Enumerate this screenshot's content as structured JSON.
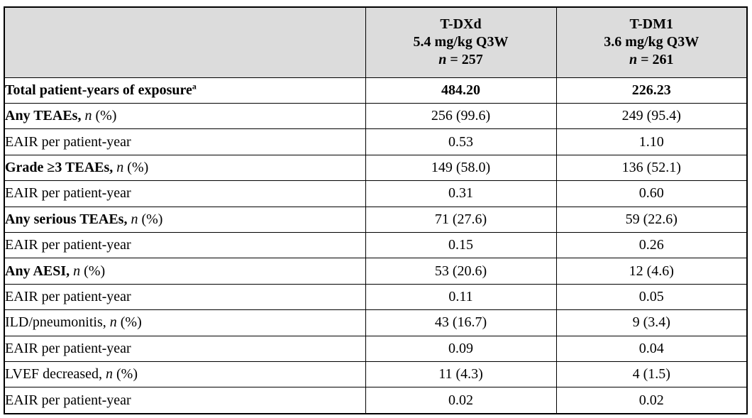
{
  "table": {
    "name": "teae-safety-summary-table",
    "header_bg": "#dcdcdc",
    "border_color": "#000000",
    "columns": [
      {
        "id": "row-label",
        "lines": []
      },
      {
        "id": "t-dxd",
        "lines": [
          [
            {
              "v": "T-DXd"
            }
          ],
          [
            {
              "v": "5.4 mg/kg Q3W"
            }
          ],
          [
            {
              "v": "n",
              "i": true
            },
            {
              "v": " = 257"
            }
          ]
        ]
      },
      {
        "id": "t-dm1",
        "lines": [
          [
            {
              "v": "T-DM1"
            }
          ],
          [
            {
              "v": "3.6 mg/kg Q3W"
            }
          ],
          [
            {
              "v": "n",
              "i": true
            },
            {
              "v": " = 261"
            }
          ]
        ]
      }
    ],
    "rows": [
      {
        "id": "total-patient-years",
        "indent": 0,
        "bold_values": true,
        "label_parts": [
          {
            "v": "Total patient-years of exposure",
            "b": true
          },
          {
            "v": "a",
            "b": true,
            "sup": true
          }
        ],
        "cells": [
          "484.20",
          "226.23"
        ]
      },
      {
        "id": "any-teaes",
        "indent": 0,
        "label_parts": [
          {
            "v": "Any TEAEs, ",
            "b": true
          },
          {
            "v": "n",
            "i": true
          },
          {
            "v": " (%)"
          }
        ],
        "cells": [
          "256 (99.6)",
          "249 (95.4)"
        ]
      },
      {
        "id": "any-teaes-eair",
        "indent": 1,
        "label_parts": [
          {
            "v": "EAIR per patient-year"
          }
        ],
        "cells": [
          "0.53",
          "1.10"
        ]
      },
      {
        "id": "grade-ge3-teaes",
        "indent": 0,
        "label_parts": [
          {
            "v": "Grade ≥3 TEAEs, ",
            "b": true
          },
          {
            "v": "n",
            "i": true
          },
          {
            "v": " (%)"
          }
        ],
        "cells": [
          "149 (58.0)",
          "136 (52.1)"
        ]
      },
      {
        "id": "grade-ge3-teaes-eair",
        "indent": 1,
        "label_parts": [
          {
            "v": "EAIR per patient-year"
          }
        ],
        "cells": [
          "0.31",
          "0.60"
        ]
      },
      {
        "id": "any-serious-teaes",
        "indent": 0,
        "label_parts": [
          {
            "v": "Any serious TEAEs, ",
            "b": true
          },
          {
            "v": "n",
            "i": true
          },
          {
            "v": " (%)"
          }
        ],
        "cells": [
          "71 (27.6)",
          "59 (22.6)"
        ]
      },
      {
        "id": "any-serious-teaes-eair",
        "indent": 1,
        "label_parts": [
          {
            "v": "EAIR per patient-year"
          }
        ],
        "cells": [
          "0.15",
          "0.26"
        ]
      },
      {
        "id": "any-aesi",
        "indent": 0,
        "label_parts": [
          {
            "v": "Any AESI, ",
            "b": true
          },
          {
            "v": "n",
            "i": true
          },
          {
            "v": " (%)"
          }
        ],
        "cells": [
          "53 (20.6)",
          "12 (4.6)"
        ]
      },
      {
        "id": "any-aesi-eair",
        "indent": 1,
        "label_parts": [
          {
            "v": "EAIR per patient-year"
          }
        ],
        "cells": [
          "0.11",
          "0.05"
        ]
      },
      {
        "id": "ild-pneumonitis",
        "indent": 1,
        "label_parts": [
          {
            "v": "ILD/pneumonitis, "
          },
          {
            "v": "n",
            "i": true
          },
          {
            "v": " (%)"
          }
        ],
        "cells": [
          "43 (16.7)",
          "9 (3.4)"
        ]
      },
      {
        "id": "ild-pneumonitis-eair",
        "indent": 2,
        "label_parts": [
          {
            "v": "EAIR per patient-year"
          }
        ],
        "cells": [
          "0.09",
          "0.04"
        ]
      },
      {
        "id": "lvef-decreased",
        "indent": 1,
        "label_parts": [
          {
            "v": "LVEF decreased, "
          },
          {
            "v": "n",
            "i": true
          },
          {
            "v": " (%)"
          }
        ],
        "cells": [
          "11 (4.3)",
          "4 (1.5)"
        ]
      },
      {
        "id": "lvef-decreased-eair",
        "indent": 2,
        "label_parts": [
          {
            "v": "EAIR per patient-year"
          }
        ],
        "cells": [
          "0.02",
          "0.02"
        ]
      }
    ]
  }
}
